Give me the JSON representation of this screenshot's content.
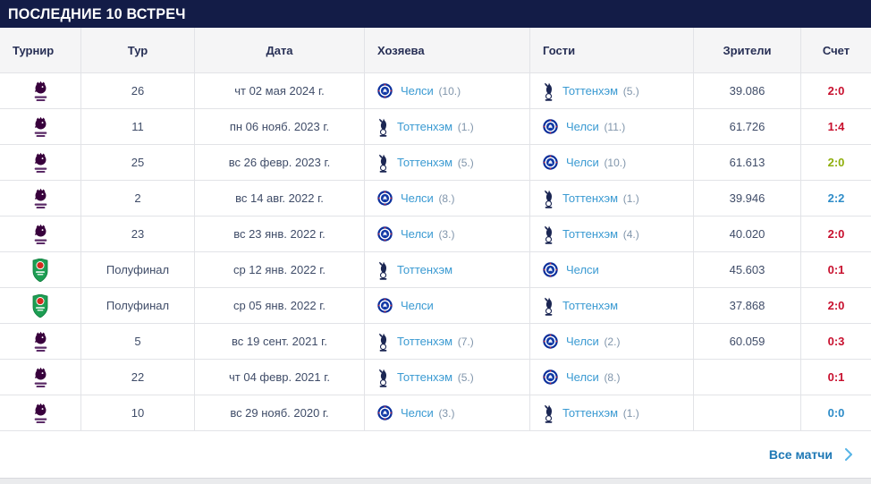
{
  "title": "ПОСЛЕДНИЕ 10 ВСТРЕЧ",
  "columns": [
    "Турнир",
    "Тур",
    "Дата",
    "Хозяева",
    "Гости",
    "Зрители",
    "Счет"
  ],
  "footer": {
    "all_matches_label": "Все матчи",
    "chevron_icon": "chevron-right-icon"
  },
  "ui_colors": {
    "title_bar_bg": "#131c47",
    "title_text": "#ffffff",
    "team_link": "#3a9ad2",
    "rank_text": "#8095ab",
    "all_matches_link": "#1e78b5",
    "chevron": "#56b4e6",
    "premier_league_purple": "#38003c",
    "efl_cup_green": "#1d9e53"
  },
  "score_colors": {
    "red": "#c8102e",
    "green": "#8fae0b",
    "blue": "#2e8cc8"
  },
  "rows": [
    {
      "tournament_icon": "premier-league",
      "round": "26",
      "date": "чт 02 мая 2024 г.",
      "home": {
        "icon": "chelsea",
        "name": "Челси",
        "rank": "(10.)"
      },
      "away": {
        "icon": "tottenham",
        "name": "Тоттенхэм",
        "rank": "(5.)"
      },
      "attendance": "39.086",
      "score": "2:0",
      "score_color": "red"
    },
    {
      "tournament_icon": "premier-league",
      "round": "11",
      "date": "пн 06 нояб. 2023 г.",
      "home": {
        "icon": "tottenham",
        "name": "Тоттенхэм",
        "rank": "(1.)"
      },
      "away": {
        "icon": "chelsea",
        "name": "Челси",
        "rank": "(11.)"
      },
      "attendance": "61.726",
      "score": "1:4",
      "score_color": "red"
    },
    {
      "tournament_icon": "premier-league",
      "round": "25",
      "date": "вс 26 февр. 2023 г.",
      "home": {
        "icon": "tottenham",
        "name": "Тоттенхэм",
        "rank": "(5.)"
      },
      "away": {
        "icon": "chelsea",
        "name": "Челси",
        "rank": "(10.)"
      },
      "attendance": "61.613",
      "score": "2:0",
      "score_color": "green"
    },
    {
      "tournament_icon": "premier-league",
      "round": "2",
      "date": "вс 14 авг. 2022 г.",
      "home": {
        "icon": "chelsea",
        "name": "Челси",
        "rank": "(8.)"
      },
      "away": {
        "icon": "tottenham",
        "name": "Тоттенхэм",
        "rank": "(1.)"
      },
      "attendance": "39.946",
      "score": "2:2",
      "score_color": "blue"
    },
    {
      "tournament_icon": "premier-league",
      "round": "23",
      "date": "вс 23 янв. 2022 г.",
      "home": {
        "icon": "chelsea",
        "name": "Челси",
        "rank": "(3.)"
      },
      "away": {
        "icon": "tottenham",
        "name": "Тоттенхэм",
        "rank": "(4.)"
      },
      "attendance": "40.020",
      "score": "2:0",
      "score_color": "red"
    },
    {
      "tournament_icon": "efl-cup",
      "round": "Полуфинал",
      "date": "ср 12 янв. 2022 г.",
      "home": {
        "icon": "tottenham",
        "name": "Тоттенхэм",
        "rank": ""
      },
      "away": {
        "icon": "chelsea",
        "name": "Челси",
        "rank": ""
      },
      "attendance": "45.603",
      "score": "0:1",
      "score_color": "red"
    },
    {
      "tournament_icon": "efl-cup",
      "round": "Полуфинал",
      "date": "ср 05 янв. 2022 г.",
      "home": {
        "icon": "chelsea",
        "name": "Челси",
        "rank": ""
      },
      "away": {
        "icon": "tottenham",
        "name": "Тоттенхэм",
        "rank": ""
      },
      "attendance": "37.868",
      "score": "2:0",
      "score_color": "red"
    },
    {
      "tournament_icon": "premier-league",
      "round": "5",
      "date": "вс 19 сент. 2021 г.",
      "home": {
        "icon": "tottenham",
        "name": "Тоттенхэм",
        "rank": "(7.)"
      },
      "away": {
        "icon": "chelsea",
        "name": "Челси",
        "rank": "(2.)"
      },
      "attendance": "60.059",
      "score": "0:3",
      "score_color": "red"
    },
    {
      "tournament_icon": "premier-league",
      "round": "22",
      "date": "чт 04 февр. 2021 г.",
      "home": {
        "icon": "tottenham",
        "name": "Тоттенхэм",
        "rank": "(5.)"
      },
      "away": {
        "icon": "chelsea",
        "name": "Челси",
        "rank": "(8.)"
      },
      "attendance": "",
      "score": "0:1",
      "score_color": "red"
    },
    {
      "tournament_icon": "premier-league",
      "round": "10",
      "date": "вс 29 нояб. 2020 г.",
      "home": {
        "icon": "chelsea",
        "name": "Челси",
        "rank": "(3.)"
      },
      "away": {
        "icon": "tottenham",
        "name": "Тоттенхэм",
        "rank": "(1.)"
      },
      "attendance": "",
      "score": "0:0",
      "score_color": "blue"
    }
  ]
}
